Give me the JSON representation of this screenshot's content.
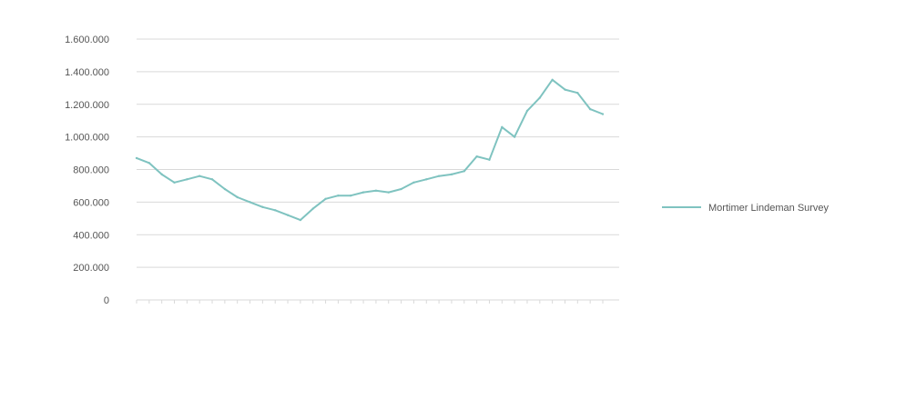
{
  "chart_data": {
    "type": "line",
    "title": "",
    "xlabel": "",
    "ylabel": "",
    "ylim": [
      0,
      1600000
    ],
    "y_ticks": [
      0,
      200000,
      400000,
      600000,
      800000,
      1000000,
      1200000,
      1400000,
      1600000
    ],
    "y_tick_labels": [
      "0",
      "200.000",
      "400.000",
      "600.000",
      "800.000",
      "1.000.000",
      "1.200.000",
      "1.400.000",
      "1.600.000"
    ],
    "grid": true,
    "legend": "right",
    "categories": [
      "",
      "",
      "",
      "",
      "",
      "",
      "",
      "",
      "",
      "",
      "",
      "",
      "",
      "",
      "",
      "",
      "",
      "",
      "",
      "",
      "",
      "",
      "",
      "",
      "",
      "",
      "",
      "",
      "",
      "",
      "",
      "",
      "",
      "",
      "",
      "",
      "",
      ""
    ],
    "series": [
      {
        "name": "Mortimer Lindeman Survey",
        "color": "#7fc3c0",
        "values": [
          870000,
          840000,
          770000,
          720000,
          740000,
          760000,
          740000,
          680000,
          630000,
          600000,
          570000,
          550000,
          520000,
          490000,
          560000,
          620000,
          640000,
          640000,
          660000,
          670000,
          660000,
          680000,
          720000,
          740000,
          760000,
          770000,
          790000,
          880000,
          860000,
          1060000,
          1000000,
          1160000,
          1240000,
          1350000,
          1290000,
          1270000,
          1170000,
          1140000
        ]
      }
    ]
  }
}
